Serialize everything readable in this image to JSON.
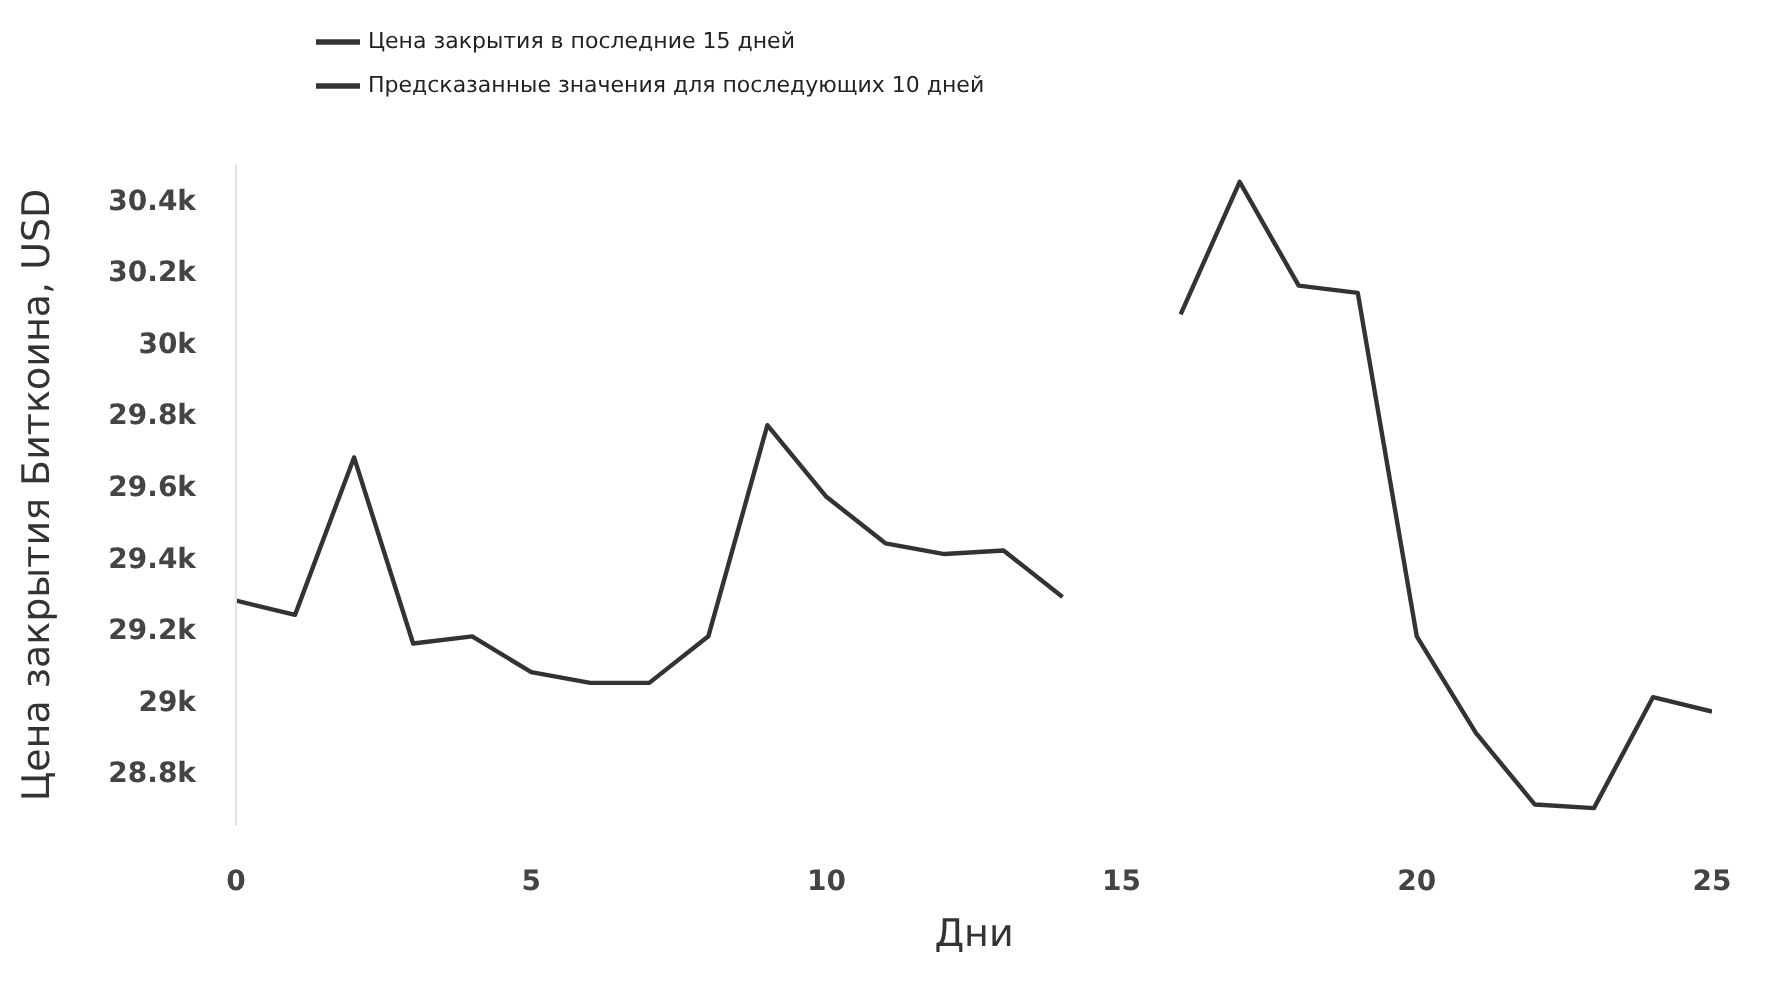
{
  "chart_data": {
    "type": "line",
    "xlabel": "Дни",
    "ylabel": "Цена закрытия Биткоина, USD",
    "series": [
      {
        "name": "Цена закрытия в последние 15 дней",
        "color": "#333333",
        "x": [
          0,
          1,
          2,
          3,
          4,
          5,
          6,
          7,
          8,
          9,
          10,
          11,
          12,
          13,
          14
        ],
        "values": [
          29280,
          29240,
          29680,
          29160,
          29180,
          29080,
          29050,
          29050,
          29180,
          29770,
          29570,
          29440,
          29410,
          29420,
          29290
        ]
      },
      {
        "name": "Предсказанные значения для последующих 10 дней",
        "color": "#333333",
        "x": [
          16,
          17,
          18,
          19,
          20,
          21,
          22,
          23,
          24,
          25
        ],
        "values": [
          30080,
          30450,
          30160,
          30140,
          29180,
          28910,
          28710,
          28700,
          29010,
          28970
        ]
      }
    ],
    "xlim": [
      0,
      25
    ],
    "xticks": [
      0,
      5,
      10,
      15,
      20,
      25
    ],
    "ylim": [
      28650,
      30500
    ],
    "yticks": [
      {
        "value": 28800,
        "label": "28.8k"
      },
      {
        "value": 29000,
        "label": "29k"
      },
      {
        "value": 29200,
        "label": "29.2k"
      },
      {
        "value": 29400,
        "label": "29.4k"
      },
      {
        "value": 29600,
        "label": "29.6k"
      },
      {
        "value": 29800,
        "label": "29.8k"
      },
      {
        "value": 30000,
        "label": "30k"
      },
      {
        "value": 30200,
        "label": "30.2k"
      },
      {
        "value": 30400,
        "label": "30.4k"
      }
    ],
    "grid": false,
    "legend": "top left",
    "marker": "none",
    "line_style": "solid"
  }
}
